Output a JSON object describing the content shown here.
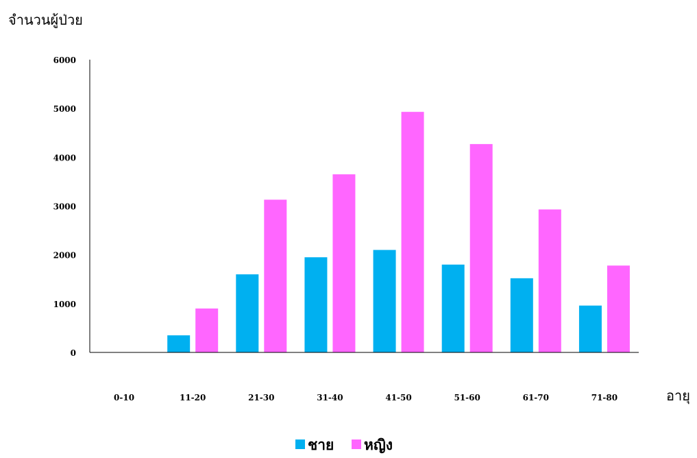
{
  "chart_data": {
    "type": "bar",
    "title": "",
    "ylabel": "จำนวนผู้ป่วย",
    "xlabel": "อายุ",
    "categories": [
      "0-10",
      "11-20",
      "21-30",
      "31-40",
      "41-50",
      "51-60",
      "61-70",
      "71-80"
    ],
    "series": [
      {
        "name": "ชาย",
        "color": "#00b0f0",
        "values": [
          0,
          350,
          1600,
          1950,
          2100,
          1800,
          1520,
          960
        ]
      },
      {
        "name": "หญิง",
        "color": "#ff66ff",
        "values": [
          0,
          900,
          3130,
          3650,
          4930,
          4270,
          2930,
          1780
        ]
      }
    ],
    "ylim": [
      0,
      6000
    ],
    "yticks": [
      0,
      1000,
      2000,
      3000,
      4000,
      5000,
      6000
    ],
    "grid": false,
    "legend_position": "bottom"
  }
}
